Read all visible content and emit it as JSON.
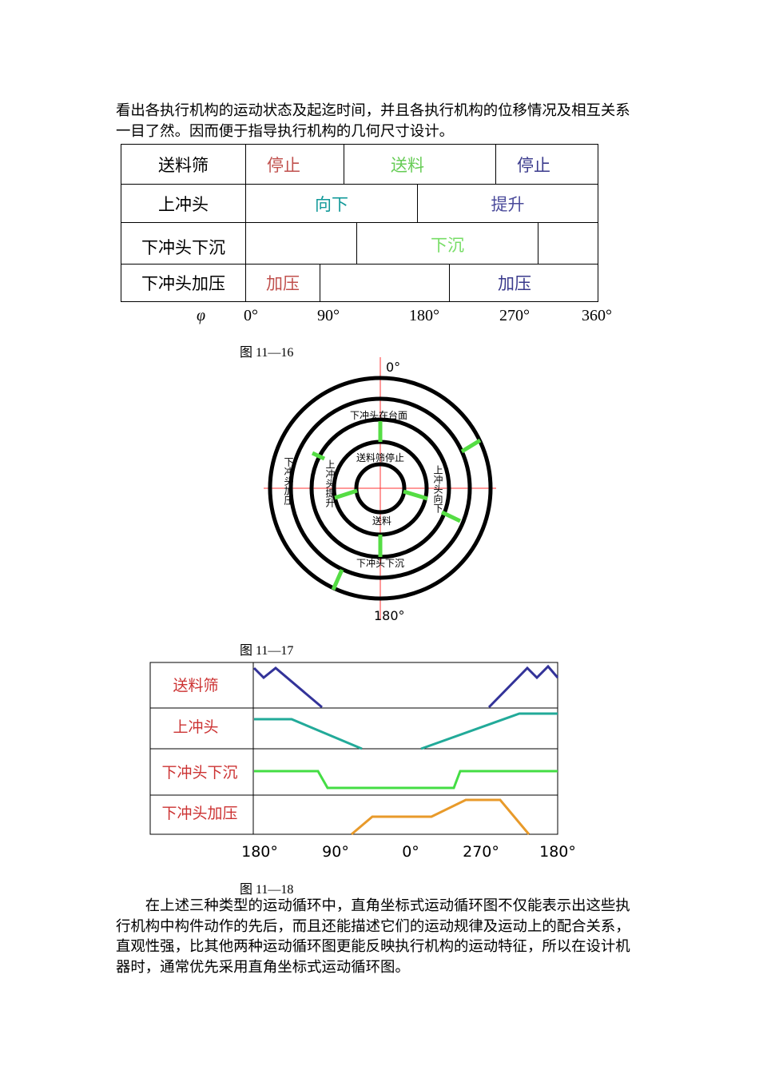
{
  "paragraph_1": "看出各执行机构的运动状态及起迄时间，并且各执行机构的位移情况及相互关系一目了然。因而便于指导执行机构的几何尺寸设计。",
  "fig_11_16": {
    "rows": [
      {
        "label": "送料筛",
        "segments": [
          "停止",
          "送料",
          "停止"
        ]
      },
      {
        "label": "上冲头",
        "segments": [
          "向下",
          "提升"
        ]
      },
      {
        "label": "下冲头下沉",
        "segments": [
          "下沉"
        ]
      },
      {
        "label": "下冲头加压",
        "segments": [
          "加压",
          "加压"
        ]
      }
    ],
    "axis_symbol": "φ",
    "axis_labels": [
      "0°",
      "90°",
      "180°",
      "270°",
      "360°"
    ],
    "caption": "图 11—16"
  },
  "fig_11_17": {
    "top_label": "0°",
    "bottom_label": "180°",
    "ring_labels": [
      "下冲头在台面",
      "送料筛停止",
      "送料",
      "下冲头下沉",
      "下冲头加压",
      "上冲头提升",
      "上冲头向下"
    ],
    "caption": "图 11—17"
  },
  "fig_11_18": {
    "row_labels": [
      "送料筛",
      "上冲头",
      "下冲头下沉",
      "下冲头加压"
    ],
    "axis_labels": [
      "180°",
      "90°",
      "0°",
      "270°",
      "180°"
    ],
    "caption": "图 11—18"
  },
  "paragraph_2": "在上述三种类型的运动循环中，直角坐标式运动循环图不仅能表示出这些执行机构中构件动作的先后，而且还能描述它们的运动规律及运动上的配合关系，直观性强，比其他两种运动循环图更能反映执行机构的运动特征，所以在设计机器时，通常优先采用直角坐标式运动循环图。"
}
